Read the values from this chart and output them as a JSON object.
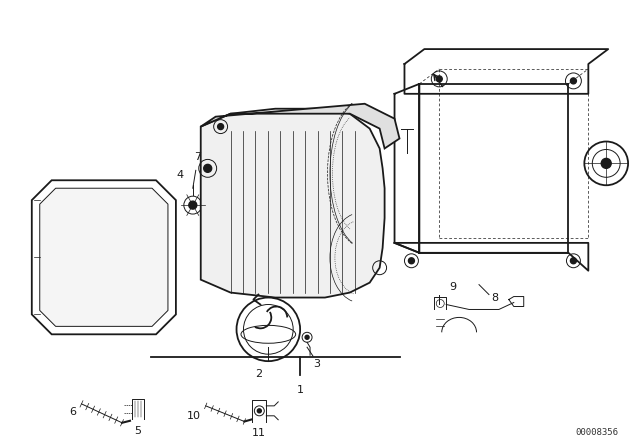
{
  "bg_color": "#ffffff",
  "line_color": "#1a1a1a",
  "fig_width": 6.4,
  "fig_height": 4.48,
  "dpi": 100,
  "doc_number": "00008356"
}
